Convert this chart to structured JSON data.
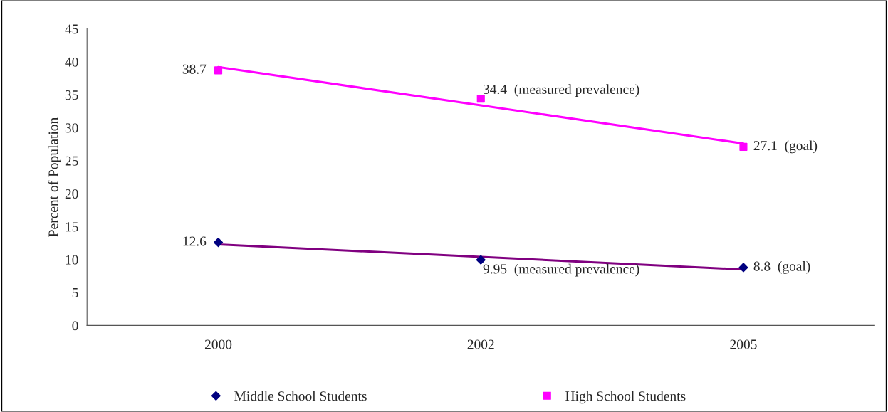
{
  "chart_data": {
    "type": "scatter",
    "ylabel": "Percent of Population",
    "categories": [
      "2000",
      "2002",
      "2005"
    ],
    "series": [
      {
        "name": "Middle School Students",
        "color": "#000080",
        "marker": "diamond",
        "values": [
          12.6,
          9.95,
          8.8
        ],
        "value_labels": [
          "12.6",
          "9.95  (measured prevalence)",
          "8.8  (goal)"
        ]
      },
      {
        "name": "High School Students",
        "color": "#ff00ff",
        "marker": "square",
        "values": [
          38.7,
          34.4,
          27.1
        ],
        "value_labels": [
          "38.7",
          "34.4  (measured prevalence)",
          "27.1  (goal)"
        ]
      },
      {
        "type": "line",
        "color": "#800080",
        "marker": "none",
        "values": [
          12.3,
          10.4,
          8.5
        ]
      },
      {
        "type": "line",
        "color": "#ff00ff",
        "marker": "none",
        "values": [
          39.2,
          33.4,
          27.6
        ]
      }
    ],
    "ylim": [
      0,
      45
    ],
    "yticks": [
      0,
      5,
      10,
      15,
      20,
      25,
      30,
      35,
      40,
      45
    ],
    "grid": false,
    "legend": "bottom"
  }
}
